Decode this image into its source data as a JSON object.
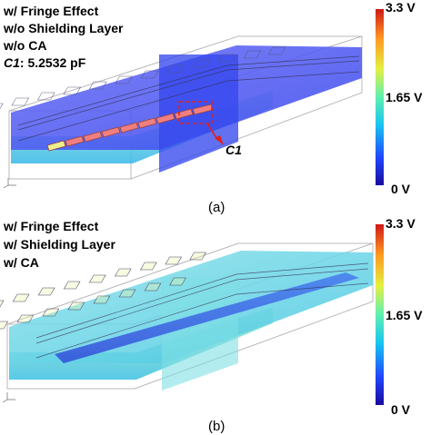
{
  "panel_a": {
    "caption": "(a)",
    "lines": [
      "w/ Fringe Effect",
      "w/o Shielding Layer",
      "w/o CA"
    ],
    "cap_symbol": "C1",
    "cap_value": ": 5.2532 pF",
    "callout_label": "C1",
    "colorbar": {
      "max": "3.3 V",
      "mid": "1.65 V",
      "min": "0 V"
    }
  },
  "panel_b": {
    "caption": "(b)",
    "lines": [
      "w/ Fringe Effect",
      "w/ Shielding Layer",
      "w/ CA"
    ],
    "colorbar": {
      "max": "3.3 V",
      "mid": "1.65 V",
      "min": "0 V"
    }
  },
  "colors": {
    "callout": "#e0201a",
    "plane_blue": "#3d4cf0",
    "plane_cyan": "#5fd3e6",
    "pad_red": "#f07f7f",
    "pad_yellow": "#eef28c",
    "pad_green": "#b8ecb4"
  }
}
